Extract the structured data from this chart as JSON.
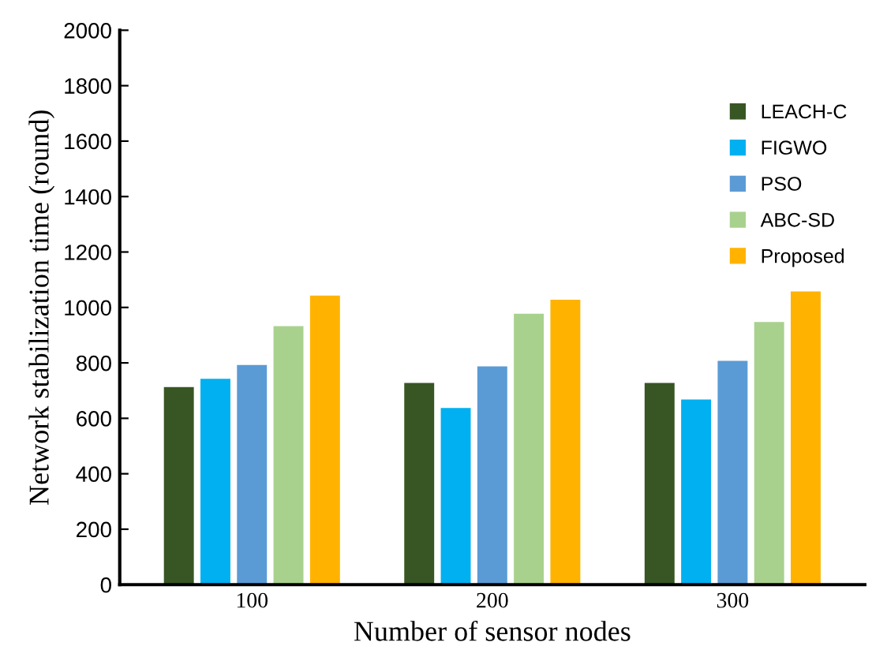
{
  "chart_data": {
    "type": "bar",
    "xlabel": "Number of sensor nodes",
    "ylabel": "Network stabilization time (round)",
    "categories": [
      "100",
      "200",
      "300"
    ],
    "series": [
      {
        "name": "LEACH-C",
        "color": "#375623",
        "values": [
          715,
          730,
          730
        ]
      },
      {
        "name": "FIGWO",
        "color": "#00b0f0",
        "values": [
          745,
          640,
          670
        ]
      },
      {
        "name": "PSO",
        "color": "#5b9bd5",
        "values": [
          795,
          790,
          810
        ]
      },
      {
        "name": "ABC-SD",
        "color": "#a9d18e",
        "values": [
          935,
          980,
          950
        ]
      },
      {
        "name": "Proposed",
        "color": "#ffb300",
        "values": [
          1045,
          1030,
          1060
        ]
      }
    ],
    "ylim": [
      0,
      2000
    ],
    "yticks": [
      0,
      200,
      400,
      600,
      800,
      1000,
      1200,
      1400,
      1600,
      1800,
      2000
    ],
    "grid": false,
    "legend": "right"
  }
}
